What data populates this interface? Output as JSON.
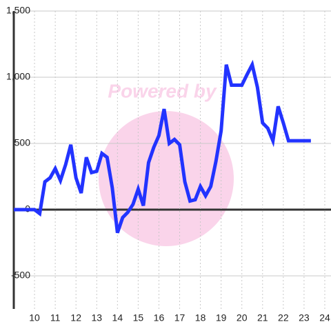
{
  "chart_data": {
    "type": "line",
    "watermark": "Powered by",
    "xlim": [
      9,
      24.3
    ],
    "xticks": [
      10,
      11,
      12,
      13,
      14,
      15,
      16,
      17,
      18,
      19,
      20,
      21,
      22,
      23,
      24
    ],
    "ylim": [
      -750,
      1500
    ],
    "yticks": [
      -500,
      0,
      500,
      {
        "value": 1000,
        "label": "1,000"
      },
      {
        "value": 1500,
        "label": "1,500"
      }
    ],
    "grid": true,
    "series": [
      {
        "color": "#2233ff",
        "x": [
          9,
          10,
          10.25,
          10.5,
          10.75,
          11,
          11.25,
          11.5,
          11.75,
          12,
          12.25,
          12.5,
          12.75,
          13,
          13.25,
          13.5,
          13.75,
          14,
          14.25,
          14.5,
          14.75,
          15,
          15.25,
          15.5,
          15.75,
          16,
          16.25,
          16.5,
          16.75,
          17,
          17.25,
          17.5,
          17.75,
          18,
          18.25,
          18.5,
          18.75,
          19,
          19.25,
          19.5,
          19.75,
          20,
          20.25,
          20.5,
          20.75,
          21,
          21.25,
          21.5,
          21.75,
          22,
          22.25,
          22.5,
          23.33
        ],
        "values": [
          0,
          0,
          -30,
          210,
          240,
          310,
          220,
          340,
          490,
          240,
          125,
          395,
          280,
          290,
          425,
          395,
          165,
          -175,
          -60,
          -20,
          40,
          155,
          30,
          355,
          470,
          560,
          760,
          500,
          530,
          490,
          210,
          65,
          75,
          175,
          105,
          175,
          365,
          595,
          1095,
          940,
          940,
          940,
          1020,
          1095,
          925,
          655,
          615,
          520,
          780,
          655,
          520,
          520,
          520
        ]
      }
    ]
  }
}
